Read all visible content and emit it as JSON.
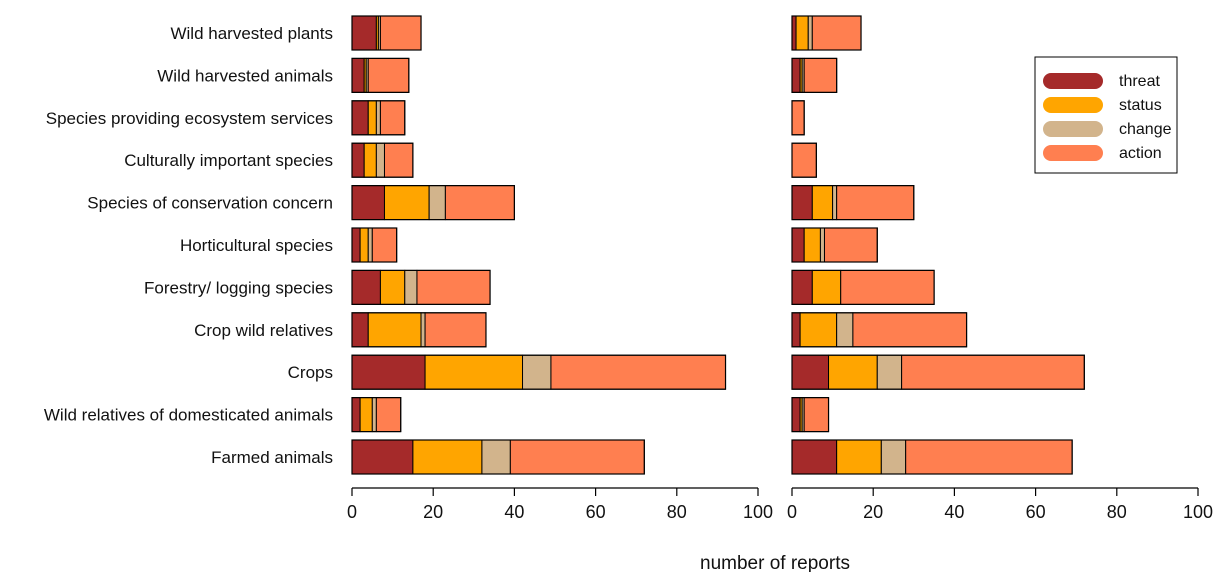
{
  "chart_data": {
    "type": "bar",
    "orientation": "horizontal",
    "stacked": true,
    "xlabel": "number of reports",
    "ylabel": "",
    "xlim": [
      0,
      100
    ],
    "xticks": [
      0,
      20,
      40,
      60,
      80,
      100
    ],
    "grid": false,
    "legend_position": "top-right of right panel",
    "categories": [
      "Wild harvested plants",
      "Wild harvested animals",
      "Species providing ecosystem services",
      "Culturally important species",
      "Species of conservation concern",
      "Horticultural species",
      "Forestry/ logging species",
      "Crop wild relatives",
      "Crops",
      "Wild relatives of domesticated animals",
      "Farmed animals"
    ],
    "series_names": [
      "threat",
      "status",
      "change",
      "action"
    ],
    "colors": {
      "threat": "#a52a2a",
      "status": "#ffa500",
      "change": "#d2b48c",
      "action": "#ff7f50"
    },
    "panels": [
      {
        "series": [
          {
            "name": "threat",
            "values": [
              6,
              3,
              4,
              3,
              8,
              2,
              7,
              4,
              18,
              2,
              15
            ]
          },
          {
            "name": "status",
            "values": [
              0.5,
              0.5,
              2,
              3,
              11,
              2,
              6,
              13,
              24,
              3,
              17
            ]
          },
          {
            "name": "change",
            "values": [
              0.5,
              0.5,
              1,
              2,
              4,
              1,
              3,
              1,
              7,
              1,
              7
            ]
          },
          {
            "name": "action",
            "values": [
              10,
              10,
              6,
              7,
              17,
              6,
              18,
              15,
              43,
              6,
              33
            ]
          }
        ]
      },
      {
        "series": [
          {
            "name": "threat",
            "values": [
              1,
              2,
              0,
              0,
              5,
              3,
              5,
              2,
              9,
              2,
              11
            ]
          },
          {
            "name": "status",
            "values": [
              3,
              0.5,
              0,
              0,
              5,
              4,
              7,
              9,
              12,
              0.5,
              11
            ]
          },
          {
            "name": "change",
            "values": [
              1,
              0.5,
              0,
              0,
              1,
              1,
              0,
              4,
              6,
              0.5,
              6
            ]
          },
          {
            "name": "action",
            "values": [
              12,
              8,
              3,
              6,
              19,
              13,
              23,
              28,
              45,
              6,
              41
            ]
          }
        ]
      }
    ]
  }
}
